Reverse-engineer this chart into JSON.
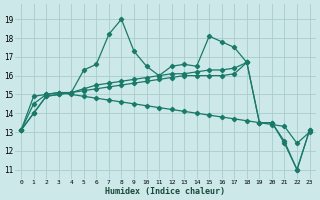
{
  "xlabel": "Humidex (Indice chaleur)",
  "xlim": [
    -0.5,
    23.5
  ],
  "ylim": [
    10.5,
    19.8
  ],
  "yticks": [
    11,
    12,
    13,
    14,
    15,
    16,
    17,
    18,
    19
  ],
  "xticks": [
    0,
    1,
    2,
    3,
    4,
    5,
    6,
    7,
    8,
    9,
    10,
    11,
    12,
    13,
    14,
    15,
    16,
    17,
    18,
    19,
    20,
    21,
    22,
    23
  ],
  "bg_color": "#cce8e8",
  "grid_color": "#aacccc",
  "line_color": "#1a7a6a",
  "series": [
    {
      "x": [
        0,
        1,
        2,
        3,
        4,
        5,
        6,
        7,
        8,
        9,
        10,
        11,
        12,
        13,
        14,
        15,
        16,
        17,
        18,
        19,
        20,
        21,
        22,
        23
      ],
      "y": [
        13.1,
        14.0,
        14.9,
        15.0,
        15.1,
        16.3,
        16.6,
        18.2,
        19.0,
        17.3,
        16.5,
        16.0,
        16.5,
        16.6,
        16.5,
        18.1,
        17.8,
        17.5,
        16.7,
        13.5,
        13.5,
        12.5,
        11.0,
        13.1
      ]
    },
    {
      "x": [
        0,
        1,
        2,
        3,
        4,
        5,
        6,
        7,
        8,
        9,
        10,
        11,
        12,
        13,
        14,
        15,
        16,
        17,
        18,
        19,
        20,
        21,
        22,
        23
      ],
      "y": [
        13.1,
        14.9,
        15.0,
        15.1,
        15.0,
        14.9,
        14.8,
        14.7,
        14.6,
        14.5,
        14.4,
        14.3,
        14.2,
        14.1,
        14.0,
        13.9,
        13.8,
        13.7,
        13.6,
        13.5,
        13.4,
        13.3,
        12.4,
        13.0
      ]
    },
    {
      "x": [
        0,
        1,
        2,
        3,
        4,
        5,
        6,
        7,
        8,
        9,
        10,
        11,
        12,
        13,
        14,
        15,
        16,
        17,
        18
      ],
      "y": [
        13.1,
        14.0,
        14.9,
        15.0,
        15.1,
        15.3,
        15.5,
        15.6,
        15.7,
        15.8,
        15.9,
        16.0,
        16.1,
        16.1,
        16.2,
        16.3,
        16.3,
        16.4,
        16.7
      ]
    },
    {
      "x": [
        0,
        1,
        2,
        3,
        4,
        5,
        6,
        7,
        8,
        9,
        10,
        11,
        12,
        13,
        14,
        15,
        16,
        17,
        18,
        19,
        20,
        21,
        22,
        23
      ],
      "y": [
        13.1,
        14.5,
        15.0,
        15.1,
        15.1,
        15.2,
        15.3,
        15.4,
        15.5,
        15.6,
        15.7,
        15.8,
        15.9,
        16.0,
        16.0,
        16.0,
        16.0,
        16.1,
        16.7,
        13.5,
        13.5,
        12.4,
        11.0,
        13.1
      ]
    }
  ]
}
